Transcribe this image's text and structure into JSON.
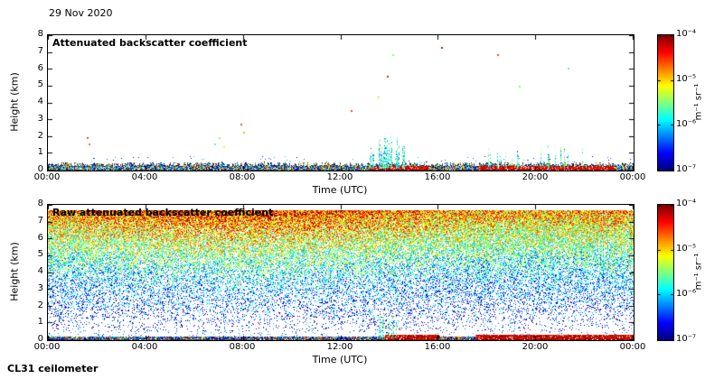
{
  "figure": {
    "date": "29 Nov 2020",
    "instrument": "CL31 ceilometer",
    "background": "#ffffff"
  },
  "chart_data": [
    {
      "type": "heatmap",
      "title": "Attenuated backscatter coefficient",
      "xlabel": "Time (UTC)",
      "ylabel": "Height (km)",
      "x_ticks": [
        "00:00",
        "04:00",
        "08:00",
        "12:00",
        "16:00",
        "20:00",
        "00:00"
      ],
      "y_ticks": [
        "8",
        "7",
        "6",
        "5",
        "4",
        "3",
        "2",
        "1",
        "0"
      ],
      "xlim_hours": [
        0,
        24
      ],
      "ylim_km": [
        0,
        8
      ],
      "max_range_km": 7.7,
      "colormap": "jet",
      "seed": 42,
      "colorbar": {
        "ticks": [
          "10⁻⁴",
          "10⁻⁵",
          "10⁻⁶",
          "10⁻⁷"
        ],
        "unit": "m⁻¹ sr⁻¹",
        "scale": "log10",
        "range_min": 1e-07,
        "range_max": 0.0001
      },
      "features": {
        "surface_aerosol_band_km": 0.35,
        "red_surface_intervals_hours": [
          [
            13.2,
            15.6
          ],
          [
            17.6,
            23.2
          ]
        ],
        "plumes": [
          {
            "start_hour": 13.2,
            "end_hour": 14.6,
            "max_km": 2.2,
            "density": 0.75
          },
          {
            "start_hour": 17.9,
            "end_hour": 22.4,
            "max_km": 1.7,
            "density": 0.16
          }
        ],
        "scattered_points": [
          [
            1.6,
            2.0,
            0.8
          ],
          [
            1.65,
            1.6,
            0.75
          ],
          [
            6.8,
            1.6,
            0.45
          ],
          [
            7.0,
            2.0,
            0.5
          ],
          [
            7.2,
            1.45,
            0.6
          ],
          [
            7.9,
            2.75,
            0.8
          ],
          [
            8.0,
            2.3,
            0.7
          ],
          [
            12.4,
            3.6,
            0.8
          ],
          [
            13.5,
            4.4,
            0.55
          ],
          [
            13.9,
            5.6,
            0.85
          ],
          [
            14.1,
            6.9,
            0.5
          ],
          [
            16.1,
            7.3,
            0.9
          ],
          [
            18.4,
            6.9,
            0.8
          ],
          [
            19.3,
            5.0,
            0.5
          ],
          [
            21.3,
            6.1,
            0.45
          ]
        ]
      }
    },
    {
      "type": "heatmap",
      "title": "Raw attenuated backscatter coefficient",
      "xlabel": "Time (UTC)",
      "ylabel": "Height (km)",
      "x_ticks": [
        "00:00",
        "04:00",
        "08:00",
        "12:00",
        "16:00",
        "20:00",
        "00:00"
      ],
      "y_ticks": [
        "8",
        "7",
        "6",
        "5",
        "4",
        "3",
        "2",
        "1",
        "0"
      ],
      "xlim_hours": [
        0,
        24
      ],
      "ylim_km": [
        0,
        8
      ],
      "max_range_km": 7.7,
      "colormap": "jet",
      "seed": 1337,
      "colorbar": {
        "ticks": [
          "10⁻⁴",
          "10⁻⁵",
          "10⁻⁶",
          "10⁻⁷"
        ],
        "unit": "m⁻¹ sr⁻¹",
        "scale": "log10",
        "range_min": 1e-07,
        "range_max": 0.0001
      },
      "features": {
        "surface_band_km": 0.22,
        "red_surface_intervals_hours": [
          [
            13.8,
            16.0
          ],
          [
            17.5,
            24.0
          ]
        ],
        "noise": {
          "base_log10": -6.95,
          "range_gain": 2.1,
          "top_bias": 0.35,
          "bias_peak_hour": 8,
          "jitter": 1.5
        },
        "plume": {
          "start_hour": 13.55,
          "end_hour": 14.25,
          "max_km": 1.5
        }
      }
    }
  ]
}
